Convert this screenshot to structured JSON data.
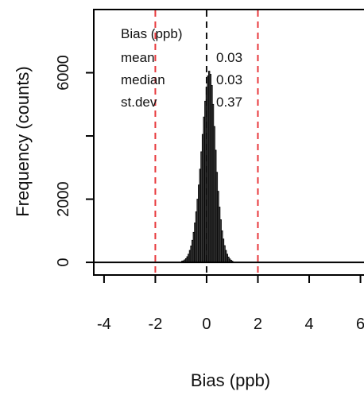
{
  "chart_data": {
    "type": "bar",
    "title": "",
    "xlabel": "Bias (ppb)",
    "ylabel": "Frequency (counts)",
    "xlim": [
      -4.4,
      6.2
    ],
    "ylim": [
      -400,
      8000
    ],
    "x_ticks": [
      {
        "value": -4,
        "label": "-4"
      },
      {
        "value": -2,
        "label": "-2"
      },
      {
        "value": 0,
        "label": "0"
      },
      {
        "value": 2,
        "label": "2"
      },
      {
        "value": 4,
        "label": "4"
      },
      {
        "value": 6,
        "label": "6"
      }
    ],
    "y_ticks": [
      {
        "value": 0,
        "label": "0"
      },
      {
        "value": 2000,
        "label": "2000"
      },
      {
        "value": 4000,
        "label": ""
      },
      {
        "value": 6000,
        "label": "6000"
      }
    ],
    "bin_width": 0.05,
    "bins": [
      {
        "x": -0.95,
        "count": 40
      },
      {
        "x": -0.9,
        "count": 50
      },
      {
        "x": -0.85,
        "count": 80
      },
      {
        "x": -0.8,
        "count": 120
      },
      {
        "x": -0.75,
        "count": 180
      },
      {
        "x": -0.7,
        "count": 260
      },
      {
        "x": -0.65,
        "count": 380
      },
      {
        "x": -0.6,
        "count": 520
      },
      {
        "x": -0.55,
        "count": 700
      },
      {
        "x": -0.5,
        "count": 950
      },
      {
        "x": -0.45,
        "count": 1250
      },
      {
        "x": -0.4,
        "count": 1600
      },
      {
        "x": -0.35,
        "count": 2000
      },
      {
        "x": -0.3,
        "count": 2450
      },
      {
        "x": -0.25,
        "count": 2950
      },
      {
        "x": -0.2,
        "count": 3500
      },
      {
        "x": -0.15,
        "count": 4050
      },
      {
        "x": -0.1,
        "count": 4600
      },
      {
        "x": -0.05,
        "count": 5100
      },
      {
        "x": 0.0,
        "count": 5550
      },
      {
        "x": 0.05,
        "count": 5900
      },
      {
        "x": 0.1,
        "count": 6050
      },
      {
        "x": 0.15,
        "count": 5950
      },
      {
        "x": 0.2,
        "count": 5600
      },
      {
        "x": 0.25,
        "count": 5000
      },
      {
        "x": 0.3,
        "count": 4300
      },
      {
        "x": 0.35,
        "count": 3550
      },
      {
        "x": 0.4,
        "count": 2850
      },
      {
        "x": 0.45,
        "count": 2250
      },
      {
        "x": 0.5,
        "count": 1750
      },
      {
        "x": 0.55,
        "count": 1350
      },
      {
        "x": 0.6,
        "count": 1000
      },
      {
        "x": 0.65,
        "count": 740
      },
      {
        "x": 0.7,
        "count": 530
      },
      {
        "x": 0.75,
        "count": 380
      },
      {
        "x": 0.8,
        "count": 260
      },
      {
        "x": 0.85,
        "count": 170
      },
      {
        "x": 0.9,
        "count": 110
      },
      {
        "x": 0.95,
        "count": 70
      },
      {
        "x": 1.0,
        "count": 40
      }
    ],
    "reference_lines": [
      {
        "x": -2,
        "style": "dashed",
        "color": "#e8383c"
      },
      {
        "x": 2,
        "style": "dashed",
        "color": "#e8383c"
      },
      {
        "x": 0,
        "style": "dashed",
        "color": "#111111"
      }
    ],
    "legend": {
      "title": "Bias (ppb)",
      "rows": [
        {
          "label": "mean",
          "value": "0.03"
        },
        {
          "label": "median",
          "value": "0.03"
        },
        {
          "label": "st.dev",
          "value": "0.37"
        }
      ]
    },
    "grid": false,
    "colors": {
      "bar_fill": "#4a4a4a",
      "bar_stroke": "#000000",
      "axis": "#000000",
      "ref_red": "#e8383c"
    }
  }
}
